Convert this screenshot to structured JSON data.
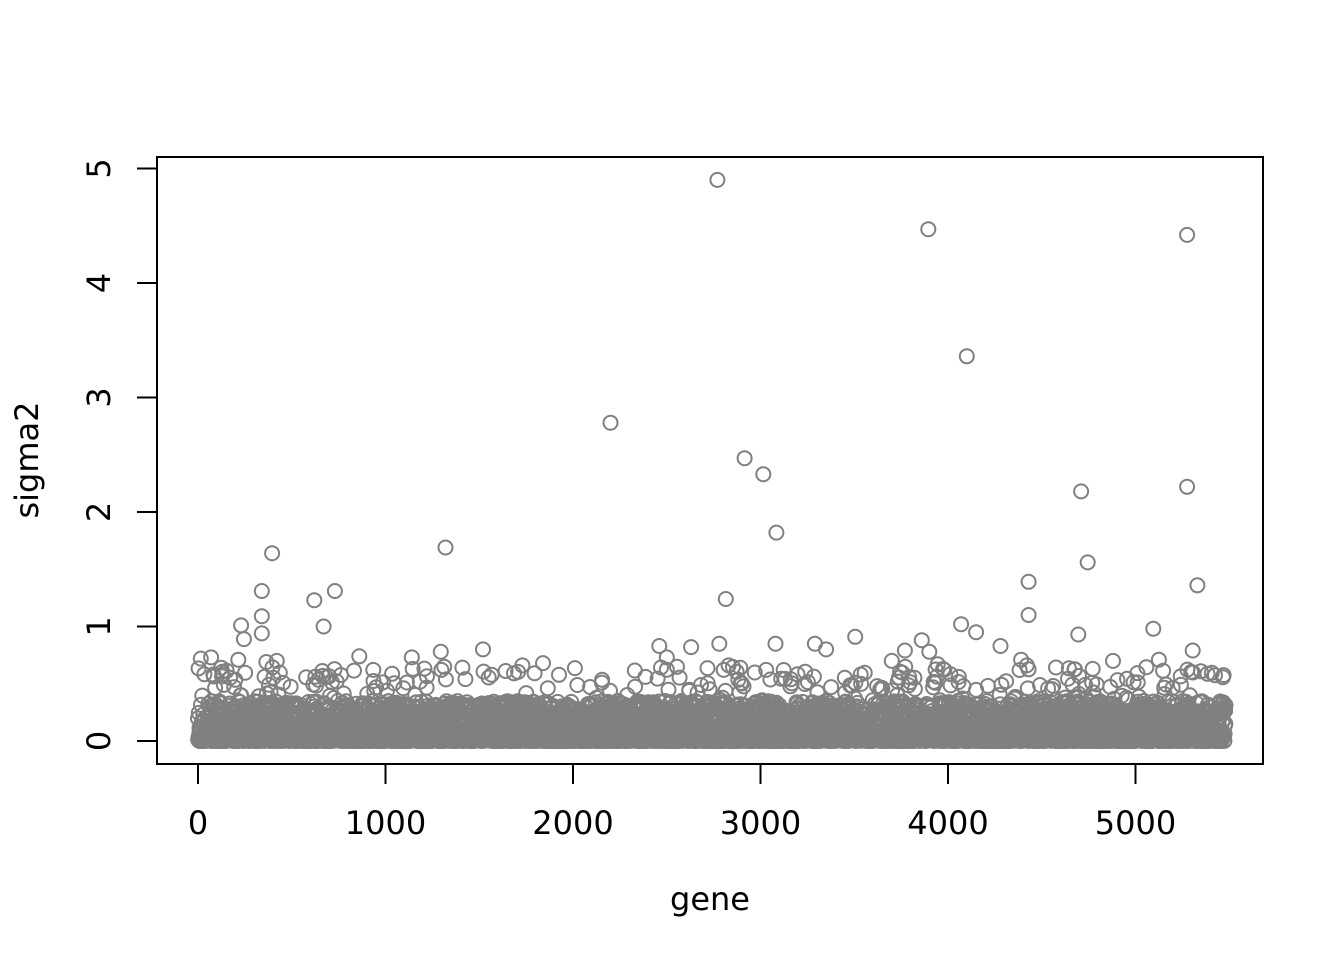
{
  "chart_data": {
    "type": "scatter",
    "title": "",
    "xlabel": "gene",
    "ylabel": "sigma2",
    "xlim": [
      -220,
      5700
    ],
    "ylim": [
      -0.2,
      5.1
    ],
    "xticks": [
      0,
      1000,
      2000,
      3000,
      4000,
      5000
    ],
    "xtick_labels": [
      "0",
      "1000",
      "2000",
      "3000",
      "4000",
      "5000"
    ],
    "yticks": [
      0,
      1,
      2,
      3,
      4,
      5
    ],
    "ytick_labels": [
      "0",
      "1",
      "2",
      "3",
      "4",
      "5"
    ],
    "grid": false,
    "legend": "none",
    "marker": "open-circle",
    "point_color": "#808080",
    "n_points_approx": 5480,
    "series": [
      {
        "points": [
          [
            2770,
            4.9
          ],
          [
            3895,
            4.47
          ],
          [
            5275,
            4.42
          ],
          [
            4100,
            3.36
          ],
          [
            2200,
            2.78
          ],
          [
            2915,
            2.47
          ],
          [
            3015,
            2.33
          ],
          [
            5275,
            2.22
          ],
          [
            4710,
            2.18
          ],
          [
            3085,
            1.82
          ],
          [
            1320,
            1.69
          ],
          [
            395,
            1.64
          ],
          [
            4745,
            1.56
          ],
          [
            4430,
            1.39
          ],
          [
            5330,
            1.36
          ],
          [
            340,
            1.31
          ],
          [
            730,
            1.31
          ],
          [
            2815,
            1.24
          ],
          [
            620,
            1.23
          ],
          [
            4430,
            1.1
          ],
          [
            340,
            1.09
          ],
          [
            230,
            1.01
          ],
          [
            4070,
            1.02
          ],
          [
            670,
            1.0
          ],
          [
            5095,
            0.98
          ],
          [
            4150,
            0.95
          ],
          [
            340,
            0.94
          ],
          [
            4695,
            0.93
          ],
          [
            3505,
            0.91
          ],
          [
            245,
            0.89
          ],
          [
            3860,
            0.88
          ],
          [
            2780,
            0.85
          ],
          [
            3080,
            0.85
          ],
          [
            3290,
            0.85
          ],
          [
            2460,
            0.83
          ],
          [
            2630,
            0.82
          ],
          [
            4280,
            0.83
          ],
          [
            1520,
            0.8
          ],
          [
            3350,
            0.8
          ],
          [
            3770,
            0.79
          ],
          [
            5305,
            0.79
          ],
          [
            1295,
            0.78
          ],
          [
            3900,
            0.78
          ],
          [
            860,
            0.74
          ],
          [
            70,
            0.73
          ],
          [
            1140,
            0.73
          ],
          [
            2500,
            0.73
          ],
          [
            5125,
            0.71
          ],
          [
            15,
            0.72
          ],
          [
            215,
            0.71
          ],
          [
            365,
            0.69
          ],
          [
            420,
            0.7
          ],
          [
            3945,
            0.67
          ],
          [
            3700,
            0.7
          ],
          [
            4880,
            0.7
          ],
          [
            1840,
            0.68
          ],
          [
            1730,
            0.66
          ],
          [
            2830,
            0.66
          ],
          [
            4390,
            0.71
          ],
          [
            4420,
            0.66
          ]
        ]
      }
    ],
    "bulk_profile": {
      "description_values": "dense cloud of points for gene 0–5480 with sigma2 mostly between 0.0 and 0.35",
      "x_range": [
        0,
        5480
      ],
      "y_core": [
        0.0,
        0.35
      ],
      "y_tail_max": 0.65
    }
  }
}
